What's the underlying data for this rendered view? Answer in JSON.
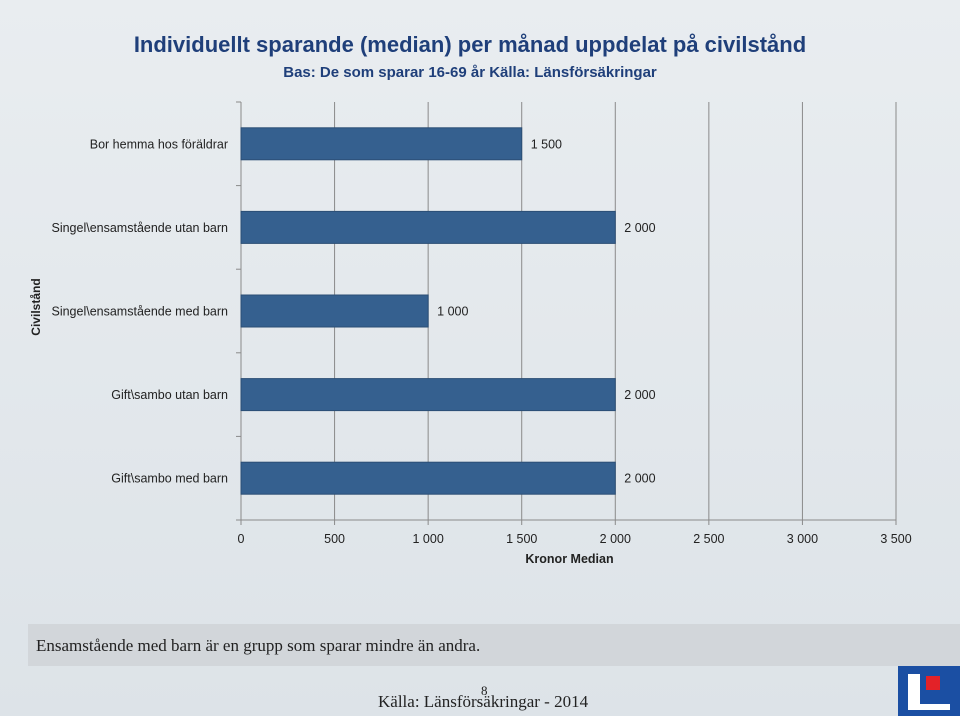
{
  "slide": {
    "note": "Ensamstående med barn är en grupp som sparar mindre än andra.",
    "source": "Källa: Länsförsäkringar - 2014",
    "page_number": "8"
  },
  "colors": {
    "bar": "#35608f",
    "bar_stroke": "#2b4e75",
    "title": "#1f3f7a",
    "logo_blue": "#1b4fa3",
    "logo_red": "#e32228"
  },
  "chart_data": {
    "type": "bar",
    "orientation": "horizontal",
    "title": "Individuellt sparande (median) per månad uppdelat på civilstånd",
    "subtitle": "Bas: De som sparar 16-69 år Källa: Länsförsäkringar",
    "xlabel": "Kronor Median",
    "ylabel": "Civilstånd",
    "xlim": [
      0,
      3500
    ],
    "xticks": [
      0,
      500,
      1000,
      1500,
      2000,
      2500,
      3000,
      3500
    ],
    "xtick_labels": [
      "0",
      "500",
      "1 000",
      "1 500",
      "2 000",
      "2 500",
      "3 000",
      "3 500"
    ],
    "grid": "vertical",
    "categories": [
      "Bor hemma hos föräldrar",
      "Singel\\ensamstående utan barn",
      "Singel\\ensamstående med barn",
      "Gift\\sambo utan barn",
      "Gift\\sambo med barn"
    ],
    "values": [
      1500,
      2000,
      1000,
      2000,
      2000
    ],
    "value_labels": [
      "1 500",
      "2 000",
      "1 000",
      "2 000",
      "2 000"
    ]
  }
}
